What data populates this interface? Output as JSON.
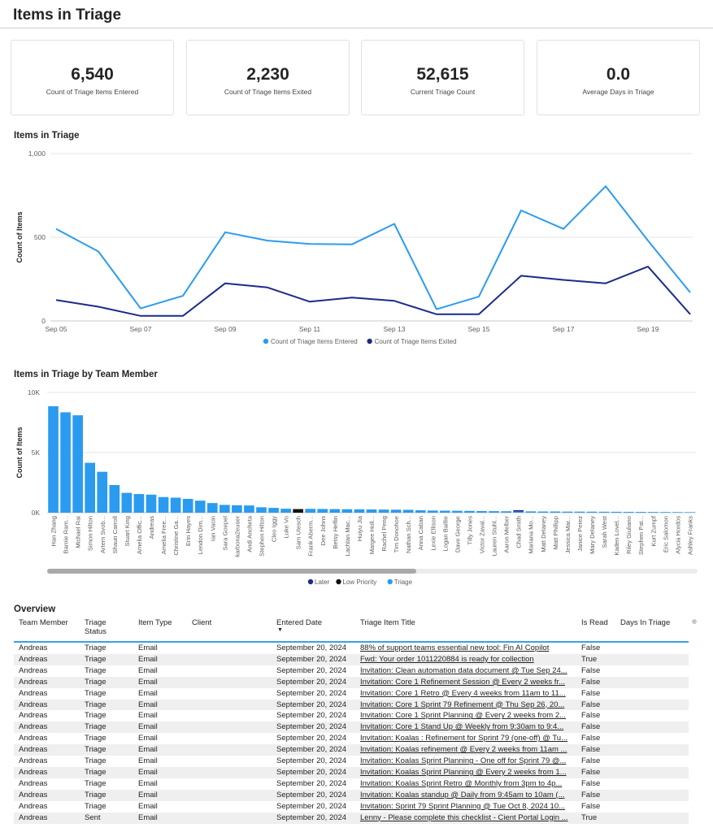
{
  "page_title": "Items in Triage",
  "kpis": [
    {
      "value": "6,540",
      "label": "Count of Triage Items Entered"
    },
    {
      "value": "2,230",
      "label": "Count of Triage Items Exited"
    },
    {
      "value": "52,615",
      "label": "Current Triage Count"
    },
    {
      "value": "0.0",
      "label": "Average Days in Triage"
    }
  ],
  "colors": {
    "entered": "#2b9bf0",
    "exited": "#1d2a8c",
    "triage": "#2b9bf0",
    "later": "#1d2a8c",
    "low_priority": "#111111",
    "header_rule": "#3aa0e6"
  },
  "chart_data": [
    {
      "type": "line",
      "title": "Items in Triage",
      "ylabel": "Count of Items",
      "xlabel": "",
      "ylim": [
        0,
        1000
      ],
      "y_ticks": [
        "0",
        "500",
        "1,000"
      ],
      "x_ticks": [
        "Sep 05",
        "Sep 07",
        "Sep 09",
        "Sep 11",
        "Sep 13",
        "Sep 15",
        "Sep 17",
        "Sep 19"
      ],
      "x": [
        "Sep 05",
        "Sep 06",
        "Sep 07",
        "Sep 08",
        "Sep 09",
        "Sep 10",
        "Sep 11",
        "Sep 12",
        "Sep 13",
        "Sep 14",
        "Sep 15",
        "Sep 16",
        "Sep 17",
        "Sep 18",
        "Sep 19",
        "Sep 20"
      ],
      "series": [
        {
          "name": "Count of Triage Items Entered",
          "values": [
            550,
            415,
            75,
            150,
            530,
            480,
            460,
            458,
            580,
            70,
            145,
            660,
            550,
            805,
            480,
            170
          ]
        },
        {
          "name": "Count of Triage Items Exited",
          "values": [
            125,
            85,
            30,
            30,
            225,
            200,
            115,
            140,
            120,
            40,
            40,
            270,
            245,
            225,
            325,
            40
          ]
        }
      ],
      "legend": "bottom-center",
      "grid": true
    },
    {
      "type": "bar",
      "title": "Items in Triage by Team Member",
      "ylabel": "Count of Items",
      "xlabel": "",
      "ylim": [
        0,
        10000
      ],
      "y_ticks": [
        "0K",
        "5K",
        "10K"
      ],
      "categories": [
        "Han Zhang",
        "Barnie Ram...",
        "Michael Rai",
        "Simon Hilton",
        "Artem Svob...",
        "Shaun Carroll",
        "Stuart King",
        "Amelia Offic...",
        "Andreas",
        "Amelia Free...",
        "Christine Ga...",
        "Erin Hayes",
        "Lendon Dim...",
        "Ian Vacin",
        "Sara Goepel",
        "karbona2euser",
        "Andi Ancheta",
        "Stephen Hilton",
        "Cleo Iggy",
        "Luke Vo",
        "Sam Utesch",
        "Frank Aberm...",
        "Dee Johns",
        "Betsy Heflin",
        "Lachlan Mac...",
        "Huiyu Jia",
        "Margee Holl...",
        "Rachel Peng",
        "Tim Donohoe",
        "Nathan Sch...",
        "Anna Caban",
        "Lexie Ellison",
        "Logan Baillie",
        "Dave George",
        "Tilly Jones",
        "Victor Zaval...",
        "Lauren Stuhl...",
        "Aaron Melber",
        "Chad Smith",
        "Mariana Mo...",
        "Matt Delaney",
        "Matt Phillipp",
        "Jessica Mar...",
        "Janice Perez",
        "Mary Delaney",
        "Sarah West",
        "Kaden Lovel...",
        "Riley Giuliano",
        "Stephen Pat...",
        "Kurt Zumpf",
        "Eric Salomon",
        "Alycia Hordos",
        "Ashley Franks"
      ],
      "series": [
        {
          "name": "Triage",
          "values": [
            8850,
            8350,
            8100,
            4150,
            3400,
            2300,
            1650,
            1550,
            1500,
            1300,
            1250,
            1150,
            1000,
            800,
            650,
            620,
            600,
            450,
            400,
            330,
            0,
            320,
            310,
            300,
            290,
            280,
            270,
            260,
            250,
            240,
            200,
            180,
            170,
            160,
            150,
            140,
            130,
            120,
            90,
            110,
            100,
            100,
            90,
            90,
            85,
            80,
            75,
            70,
            65,
            60,
            55,
            50,
            45
          ]
        },
        {
          "name": "Later",
          "values": [
            0,
            0,
            0,
            0,
            0,
            0,
            0,
            0,
            0,
            0,
            0,
            0,
            0,
            0,
            0,
            0,
            0,
            0,
            0,
            0,
            0,
            0,
            0,
            0,
            0,
            0,
            0,
            0,
            0,
            0,
            0,
            0,
            0,
            0,
            0,
            0,
            0,
            0,
            120,
            0,
            0,
            0,
            0,
            0,
            0,
            0,
            0,
            0,
            0,
            0,
            0,
            0,
            0
          ]
        },
        {
          "name": "Low Priority",
          "values": [
            0,
            0,
            0,
            0,
            0,
            0,
            0,
            0,
            0,
            0,
            0,
            0,
            0,
            0,
            0,
            0,
            0,
            0,
            0,
            0,
            300,
            0,
            0,
            0,
            0,
            0,
            0,
            0,
            0,
            0,
            0,
            0,
            0,
            0,
            0,
            0,
            0,
            0,
            0,
            0,
            0,
            0,
            0,
            0,
            0,
            0,
            0,
            0,
            0,
            0,
            0,
            0,
            0
          ]
        }
      ],
      "legend": "bottom-center",
      "legend_items": [
        "Later",
        "Low Priority",
        "Triage"
      ],
      "grid": true
    }
  ],
  "overview": {
    "title": "Overview",
    "columns": [
      "Team Member",
      "Triage Status",
      "Item Type",
      "Client",
      "Entered Date",
      "Triage Item Title",
      "Is Read",
      "Days In Triage"
    ],
    "rows": [
      [
        "Andreas",
        "Triage",
        "Email",
        "",
        "September 20, 2024",
        "88% of support teams essential new tool: Fin AI Copilot",
        "False",
        ""
      ],
      [
        "Andreas",
        "Triage",
        "Email",
        "",
        "September 20, 2024",
        "Fwd: Your order 1011220884 is ready for collection",
        "True",
        ""
      ],
      [
        "Andreas",
        "Triage",
        "Email",
        "",
        "September 20, 2024",
        "Invitation: Clean automation data document @ Tue Sep 24...",
        "False",
        ""
      ],
      [
        "Andreas",
        "Triage",
        "Email",
        "",
        "September 20, 2024",
        "Invitation: Core 1 Refinement Session @ Every 2 weeks fr...",
        "False",
        ""
      ],
      [
        "Andreas",
        "Triage",
        "Email",
        "",
        "September 20, 2024",
        "Invitation: Core 1 Retro @ Every 4 weeks from 11am to 11...",
        "False",
        ""
      ],
      [
        "Andreas",
        "Triage",
        "Email",
        "",
        "September 20, 2024",
        "Invitation: Core 1 Sprint 79 Refinement @ Thu Sep 26, 20...",
        "False",
        ""
      ],
      [
        "Andreas",
        "Triage",
        "Email",
        "",
        "September 20, 2024",
        "Invitation: Core 1 Sprint Planning @ Every 2 weeks from 2...",
        "False",
        ""
      ],
      [
        "Andreas",
        "Triage",
        "Email",
        "",
        "September 20, 2024",
        "Invitation: Core 1 Stand Up @ Weekly from 9:30am to 9:4...",
        "False",
        ""
      ],
      [
        "Andreas",
        "Triage",
        "Email",
        "",
        "September 20, 2024",
        "Invitation: Koalas : Refinement for Sprint 79 (one-off) @ Tu...",
        "False",
        ""
      ],
      [
        "Andreas",
        "Triage",
        "Email",
        "",
        "September 20, 2024",
        "Invitation: Koalas refinement @ Every 2 weeks from 11am ...",
        "False",
        ""
      ],
      [
        "Andreas",
        "Triage",
        "Email",
        "",
        "September 20, 2024",
        "Invitation: Koalas Sprint Planning - One off for Sprint 79 @...",
        "False",
        ""
      ],
      [
        "Andreas",
        "Triage",
        "Email",
        "",
        "September 20, 2024",
        "Invitation: Koalas Sprint Planning @ Every 2 weeks from 1...",
        "False",
        ""
      ],
      [
        "Andreas",
        "Triage",
        "Email",
        "",
        "September 20, 2024",
        "Invitation: Koalas Sprint Retro @ Monthly from 3pm to 4p...",
        "False",
        ""
      ],
      [
        "Andreas",
        "Triage",
        "Email",
        "",
        "September 20, 2024",
        "Invitation: Koalas standup @ Daily from 9:45am to 10am (...",
        "False",
        ""
      ],
      [
        "Andreas",
        "Triage",
        "Email",
        "",
        "September 20, 2024",
        "Invitation: Sprint 79 Sprint Planning @ Tue Oct 8, 2024 10...",
        "False",
        ""
      ],
      [
        "Andreas",
        "Sent",
        "Email",
        "",
        "September 20, 2024",
        "Lenny - Please complete this checklist - Cient Portal Login ...",
        "True",
        ""
      ]
    ]
  }
}
